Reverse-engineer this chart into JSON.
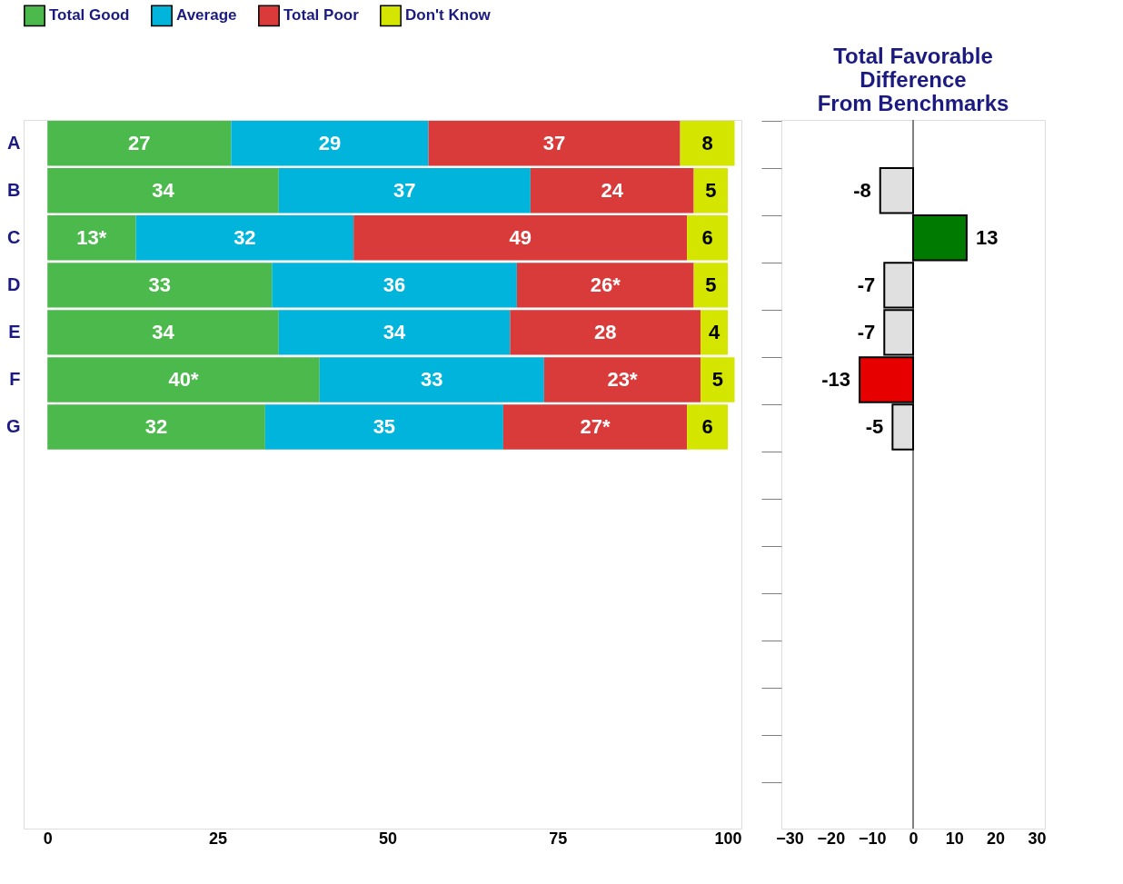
{
  "chart_data": [
    {
      "type": "bar",
      "orientation": "horizontal",
      "stacked": true,
      "legend": "top",
      "categories": [
        "A",
        "B",
        "C",
        "D",
        "E",
        "F",
        "G",
        null,
        null,
        null,
        null,
        null,
        null,
        null,
        null
      ],
      "series": [
        {
          "name": "Total Good",
          "color": "#4cb94c",
          "values": [
            27,
            34,
            13,
            33,
            34,
            40,
            32,
            null,
            null,
            null,
            null,
            null,
            null,
            null,
            null
          ],
          "value_labels": [
            "27",
            "34",
            "13*",
            "33",
            "34",
            "40*",
            "32",
            null,
            null,
            null,
            null,
            null,
            null,
            null,
            null
          ]
        },
        {
          "name": "Average",
          "color": "#00b4dc",
          "values": [
            29,
            37,
            32,
            36,
            34,
            33,
            35,
            null,
            null,
            null,
            null,
            null,
            null,
            null,
            null
          ],
          "value_labels": [
            "29",
            "37",
            "32",
            "36",
            "34",
            "33",
            "35",
            null,
            null,
            null,
            null,
            null,
            null,
            null,
            null
          ]
        },
        {
          "name": "Total Poor",
          "color": "#d93a3a",
          "values": [
            37,
            24,
            49,
            26,
            28,
            23,
            27,
            null,
            null,
            null,
            null,
            null,
            null,
            null,
            null
          ],
          "value_labels": [
            "37",
            "24",
            "49",
            "26*",
            "28",
            "23*",
            "27*",
            null,
            null,
            null,
            null,
            null,
            null,
            null,
            null
          ]
        },
        {
          "name": "Don't Know",
          "color": "#d4e600",
          "values": [
            8,
            5,
            6,
            5,
            4,
            5,
            6,
            null,
            null,
            null,
            null,
            null,
            null,
            null,
            null
          ],
          "value_labels": [
            "8",
            "5",
            "6",
            "5",
            "4",
            "5",
            "6",
            null,
            null,
            null,
            null,
            null,
            null,
            null,
            null
          ]
        }
      ],
      "xlim": [
        -3.5,
        102
      ],
      "xticks": [
        0,
        25,
        50,
        75,
        100
      ]
    },
    {
      "type": "bar",
      "orientation": "horizontal",
      "title": "Total Favorable\nDifference\nFrom Benchmarks",
      "categories": [
        null,
        null,
        null,
        null,
        null,
        null,
        null,
        null,
        null,
        null,
        null,
        null,
        null,
        null,
        null
      ],
      "values": [
        null,
        -8,
        13,
        -7,
        -7,
        -13,
        -5,
        null,
        null,
        null,
        null,
        null,
        null,
        null,
        null
      ],
      "colors": [
        "#e0e0e0",
        "#e0e0e0",
        "#007a00",
        "#e0e0e0",
        "#e0e0e0",
        "#e60000",
        "#e0e0e0",
        "#e0e0e0",
        "#e0e0e0",
        "#e0e0e0",
        "#e0e0e0",
        "#e0e0e0",
        "#e0e0e0",
        "#e0e0e0",
        "#e0e0e0"
      ],
      "data_labels": true,
      "tick_labels": "x",
      "ref_lines": [
        {
          "axis": "x",
          "value": 0,
          "color": "#808080"
        }
      ],
      "xlim": [
        -32,
        32
      ],
      "xticks": [
        -30,
        -20,
        -10,
        0,
        10,
        20,
        30
      ]
    }
  ]
}
